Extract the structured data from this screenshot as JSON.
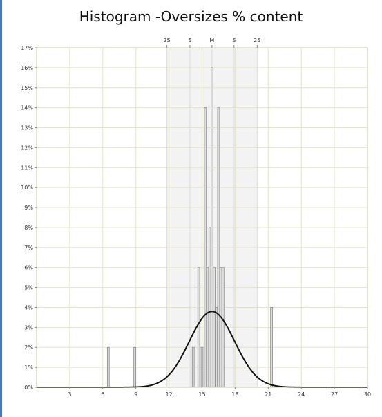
{
  "chart_data": {
    "type": "bar",
    "title": "Histogram -Oversizes % content",
    "xlabel": "",
    "ylabel": "",
    "xlim": [
      0,
      30
    ],
    "ylim": [
      0,
      17
    ],
    "x_ticks": [
      3,
      6,
      9,
      12,
      15,
      18,
      21,
      24,
      27,
      30
    ],
    "y_ticks": [
      "0%",
      "1%",
      "2%",
      "3%",
      "4%",
      "5%",
      "6%",
      "7%",
      "8%",
      "9%",
      "10%",
      "11%",
      "12%",
      "13%",
      "14%",
      "15%",
      "16%",
      "17%"
    ],
    "grid": true,
    "sigma_markers": [
      {
        "label": "2S",
        "x": 11.8
      },
      {
        "label": "S",
        "x": 13.9
      },
      {
        "label": "M",
        "x": 15.9
      },
      {
        "label": "S",
        "x": 17.9
      },
      {
        "label": "2S",
        "x": 20.0
      }
    ],
    "sigma_band": [
      11.8,
      20.0
    ],
    "bars": [
      {
        "x": 6.5,
        "value": 2
      },
      {
        "x": 8.9,
        "value": 2
      },
      {
        "x": 14.2,
        "value": 2
      },
      {
        "x": 14.7,
        "value": 6
      },
      {
        "x": 15.0,
        "value": 2
      },
      {
        "x": 15.3,
        "value": 14
      },
      {
        "x": 15.5,
        "value": 6
      },
      {
        "x": 15.7,
        "value": 8
      },
      {
        "x": 15.9,
        "value": 16
      },
      {
        "x": 16.1,
        "value": 6
      },
      {
        "x": 16.3,
        "value": 4
      },
      {
        "x": 16.5,
        "value": 14
      },
      {
        "x": 16.7,
        "value": 6
      },
      {
        "x": 16.9,
        "value": 6
      },
      {
        "x": 21.3,
        "value": 4
      }
    ],
    "bar_width": 0.18,
    "normal_curve": {
      "mean": 15.9,
      "sd": 2.05,
      "peak": 3.8
    }
  }
}
